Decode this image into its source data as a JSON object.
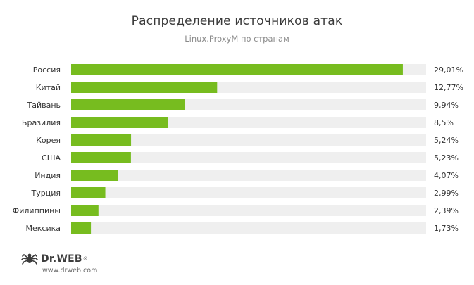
{
  "header": {
    "title": "Распределение источников атак",
    "subtitle": "Linux.ProxyM по странам"
  },
  "chart_data": {
    "type": "bar",
    "orientation": "horizontal",
    "title": "Распределение источников атак",
    "subtitle": "Linux.ProxyM по странам",
    "categories": [
      "Россия",
      "Китай",
      "Тайвань",
      "Бразилия",
      "Корея",
      "США",
      "Индия",
      "Турция",
      "Филиппины",
      "Мексика"
    ],
    "values": [
      29.01,
      12.77,
      9.94,
      8.5,
      5.24,
      5.23,
      4.07,
      2.99,
      2.39,
      1.73
    ],
    "value_labels": [
      "29,01%",
      "12,77%",
      "9,94%",
      "8,5%",
      "5,24%",
      "5,23%",
      "4,07%",
      "2,99%",
      "2,39%",
      "1,73%"
    ],
    "xlim": [
      0,
      30
    ],
    "unit": "%",
    "grid": false,
    "legend": "none",
    "colors": {
      "bar": "#77bc1f",
      "track": "#efefef"
    }
  },
  "footer": {
    "brand": "Dr.WEB",
    "registered": "®",
    "url": "www.drweb.com",
    "logo_icon": "spider-icon"
  }
}
